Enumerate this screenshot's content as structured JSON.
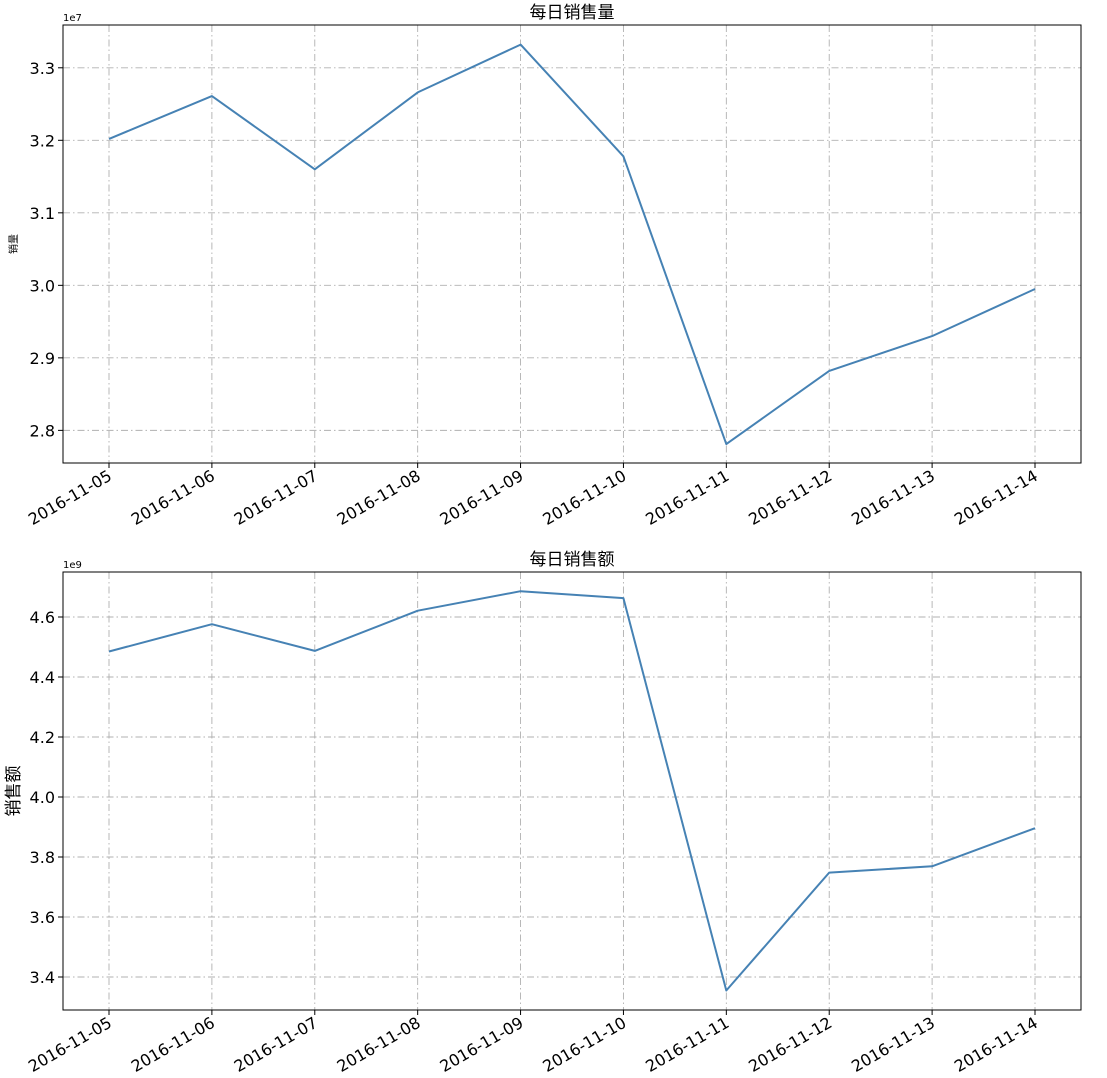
{
  "chart_data": [
    {
      "type": "line",
      "title": "每日销售量",
      "ylabel": "销量",
      "xlabel": "",
      "offset_label": "1e7",
      "categories": [
        "2016-11-05",
        "2016-11-06",
        "2016-11-07",
        "2016-11-08",
        "2016-11-09",
        "2016-11-10",
        "2016-11-11",
        "2016-11-12",
        "2016-11-13",
        "2016-11-14"
      ],
      "series": [
        {
          "values": [
            32020000,
            32610000,
            31600000,
            32660000,
            33320000,
            31780000,
            27810000,
            28820000,
            29300000,
            29950000
          ]
        }
      ],
      "ylim": [
        27550000,
        33590000
      ],
      "yticks": [
        28000000,
        29000000,
        30000000,
        31000000,
        32000000,
        33000000
      ],
      "ytick_labels": [
        "2.8",
        "2.9",
        "3.0",
        "3.1",
        "3.2",
        "3.3"
      ],
      "grid": true,
      "line_color": "#4682b4"
    },
    {
      "type": "line",
      "title": "每日销售额",
      "ylabel": "销售额",
      "xlabel": "",
      "offset_label": "1e9",
      "categories": [
        "2016-11-05",
        "2016-11-06",
        "2016-11-07",
        "2016-11-08",
        "2016-11-09",
        "2016-11-10",
        "2016-11-11",
        "2016-11-12",
        "2016-11-13",
        "2016-11-14"
      ],
      "series": [
        {
          "values": [
            4485000000,
            4576000000,
            4487000000,
            4621000000,
            4686000000,
            4663000000,
            3355000000,
            3748000000,
            3769000000,
            3896000000
          ]
        }
      ],
      "ylim": [
        3290000000,
        4750000000
      ],
      "yticks": [
        3400000000,
        3600000000,
        3800000000,
        4000000000,
        4200000000,
        4400000000,
        4600000000
      ],
      "ytick_labels": [
        "3.4",
        "3.6",
        "3.8",
        "4.0",
        "4.2",
        "4.4",
        "4.6"
      ],
      "grid": true,
      "line_color": "#4682b4"
    }
  ]
}
